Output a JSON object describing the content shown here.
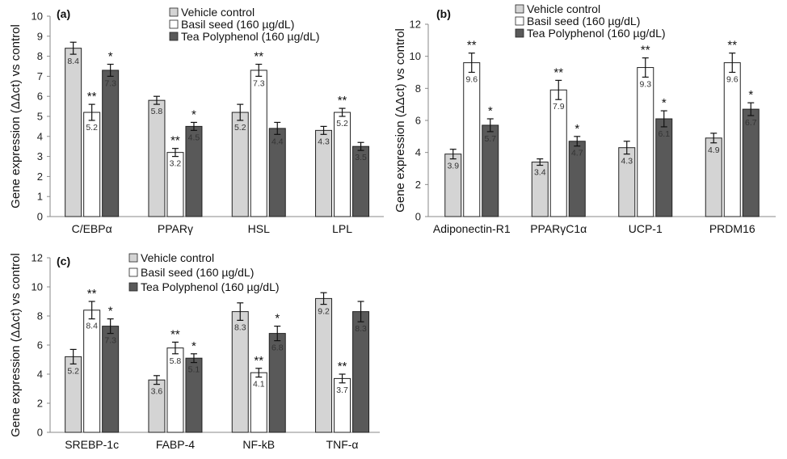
{
  "colors": {
    "vehicle": "#d4d4d4",
    "basil": "#ffffff",
    "tea": "#595959",
    "axis": "#8a8a8a",
    "bar_stroke": "#222222"
  },
  "chart_data": [
    {
      "type": "bar",
      "panel_label": "(a)",
      "ylabel": "Gene expression (ΔΔct) vs control",
      "ylim": [
        0,
        10
      ],
      "yticks": [
        0,
        1,
        2,
        3,
        4,
        5,
        6,
        7,
        8,
        9,
        10
      ],
      "legend_placement": "top-center",
      "categories": [
        "C/EBPα",
        "PPARγ",
        "HSL",
        "LPL"
      ],
      "series": [
        {
          "name": "Vehicle control",
          "values": [
            8.4,
            5.8,
            5.2,
            4.3
          ],
          "errors": [
            0.3,
            0.2,
            0.4,
            0.2
          ],
          "value_labels": [
            "8.4",
            "5.8",
            "5.2",
            "4.3"
          ],
          "significance": [
            "",
            "",
            "",
            ""
          ]
        },
        {
          "name": "Basil seed (160 µg/dL)",
          "values": [
            5.2,
            3.2,
            7.3,
            5.2
          ],
          "errors": [
            0.4,
            0.2,
            0.3,
            0.2
          ],
          "value_labels": [
            "5.2",
            "3.2",
            "7.3",
            "5.2"
          ],
          "significance": [
            "**",
            "**",
            "**",
            "**"
          ]
        },
        {
          "name": "Tea Polyphenol (160 µg/dL)",
          "values": [
            7.3,
            4.5,
            4.4,
            3.5
          ],
          "errors": [
            0.3,
            0.2,
            0.3,
            0.2
          ],
          "value_labels": [
            "7.3",
            "4.5",
            "4.4",
            "3.5"
          ],
          "significance": [
            "*",
            "*",
            "",
            ""
          ]
        }
      ]
    },
    {
      "type": "bar",
      "panel_label": "(b)",
      "ylabel": "Gene expression (ΔΔct) vs control",
      "ylim": [
        0,
        12
      ],
      "yticks": [
        0,
        2,
        4,
        6,
        8,
        10,
        12
      ],
      "legend_placement": "top-center",
      "categories": [
        "Adiponectin-R1",
        "PPARγC1α",
        "UCP-1",
        "PRDM16"
      ],
      "series": [
        {
          "name": "Vehicle control",
          "values": [
            3.9,
            3.4,
            4.3,
            4.9
          ],
          "errors": [
            0.3,
            0.2,
            0.4,
            0.3
          ],
          "value_labels": [
            "3.9",
            "3.4",
            "4.3",
            "4.9"
          ],
          "significance": [
            "",
            "",
            "",
            ""
          ]
        },
        {
          "name": "Basil seed (160 µg/dL)",
          "values": [
            9.6,
            7.9,
            9.3,
            9.6
          ],
          "errors": [
            0.6,
            0.6,
            0.6,
            0.6
          ],
          "value_labels": [
            "9.6",
            "7.9",
            "9.3",
            "9.6"
          ],
          "significance": [
            "**",
            "**",
            "**",
            "**"
          ]
        },
        {
          "name": "Tea Polyphenol (160 µg/dL)",
          "values": [
            5.7,
            4.7,
            6.1,
            6.7
          ],
          "errors": [
            0.4,
            0.3,
            0.5,
            0.4
          ],
          "value_labels": [
            "5.7",
            "4.7",
            "6.1",
            "6.7"
          ],
          "significance": [
            "*",
            "*",
            "*",
            "*"
          ]
        }
      ]
    },
    {
      "type": "bar",
      "panel_label": "(c)",
      "ylabel": "Gene expression (ΔΔct) vs control",
      "ylim": [
        0,
        12
      ],
      "yticks": [
        0,
        2,
        4,
        6,
        8,
        10,
        12
      ],
      "legend_placement": "top-center",
      "categories": [
        "SREBP-1c",
        "FABP-4",
        "NF-kB",
        "TNF-α"
      ],
      "series": [
        {
          "name": "Vehicle control",
          "values": [
            5.2,
            3.6,
            8.3,
            9.2
          ],
          "errors": [
            0.5,
            0.3,
            0.6,
            0.4
          ],
          "value_labels": [
            "5.2",
            "3.6",
            "8.3",
            "9.2"
          ],
          "significance": [
            "",
            "",
            "",
            ""
          ]
        },
        {
          "name": "Basil seed (160 µg/dL)",
          "values": [
            8.4,
            5.8,
            4.1,
            3.7
          ],
          "errors": [
            0.6,
            0.4,
            0.3,
            0.3
          ],
          "value_labels": [
            "8.4",
            "5.8",
            "4.1",
            "3.7"
          ],
          "significance": [
            "**",
            "**",
            "**",
            "**"
          ]
        },
        {
          "name": "Tea Polyphenol (160 µg/dL)",
          "values": [
            7.3,
            5.1,
            6.8,
            8.3
          ],
          "errors": [
            0.5,
            0.3,
            0.5,
            0.7
          ],
          "value_labels": [
            "7.3",
            "5.1",
            "6.8",
            "8.3"
          ],
          "significance": [
            "*",
            "*",
            "*",
            ""
          ]
        }
      ]
    }
  ]
}
